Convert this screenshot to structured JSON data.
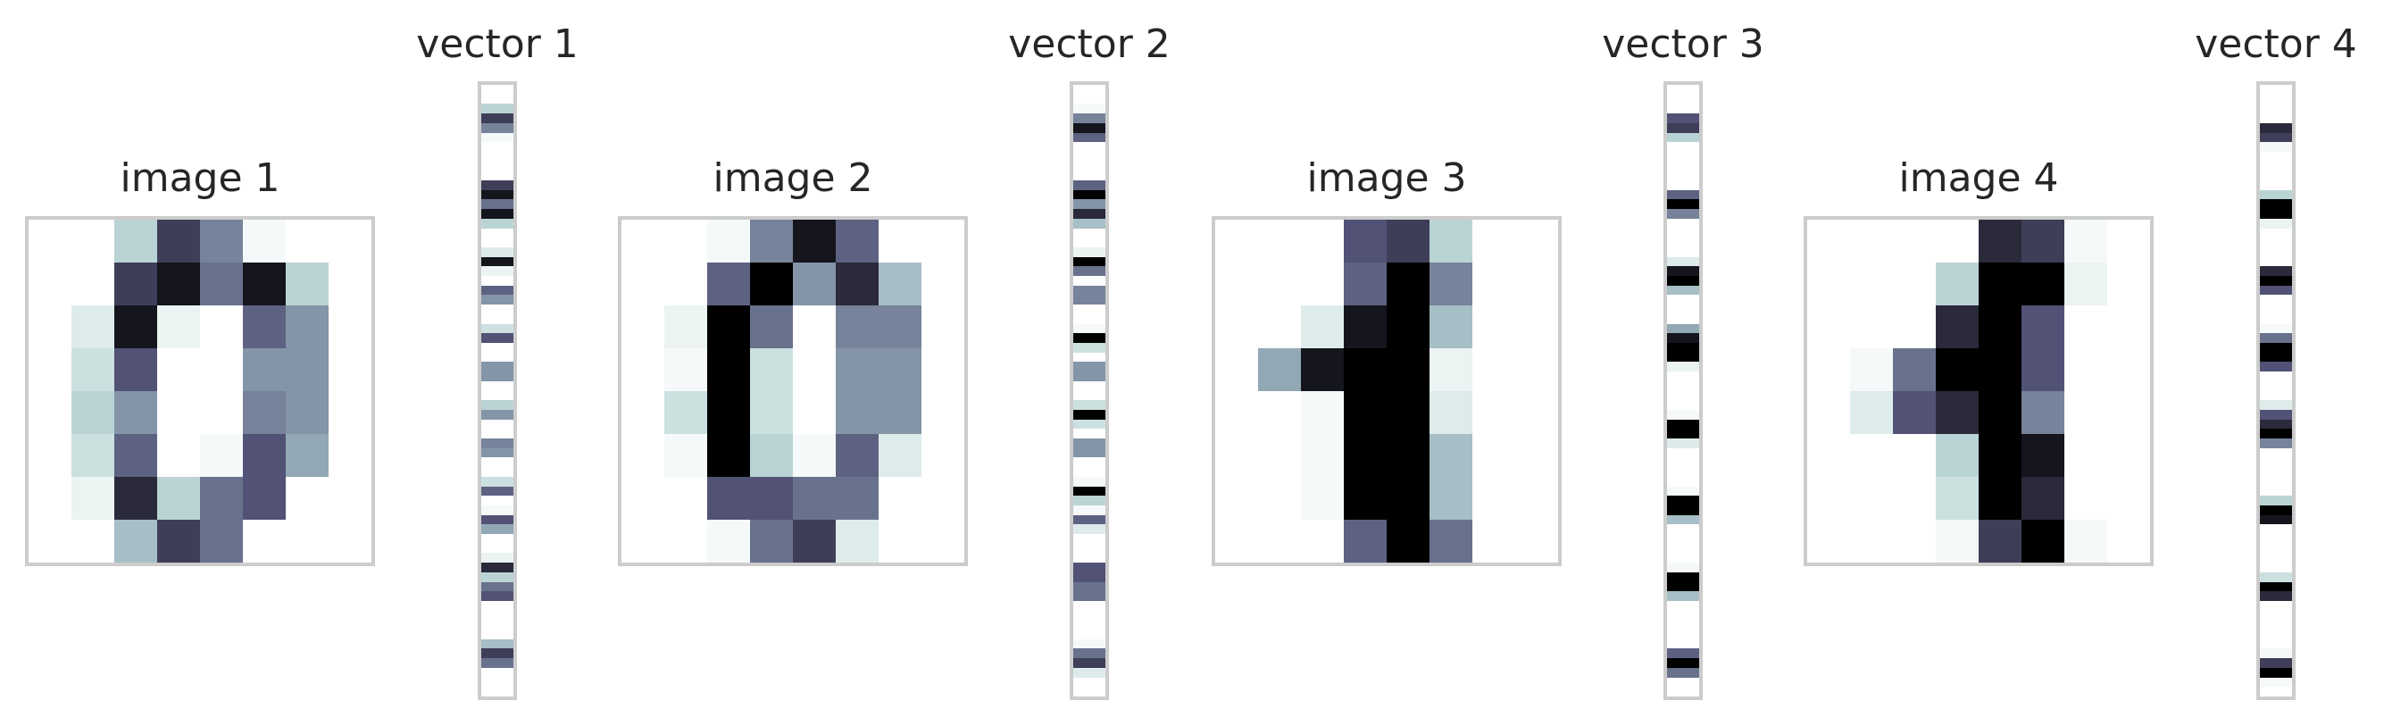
{
  "chart_data": {
    "type": "heatmap",
    "colormap": "bone_r",
    "value_range": [
      0,
      16
    ],
    "panels": [
      {
        "image_title": "image 1",
        "vector_title": "vector 1",
        "pixels": [
          [
            0,
            0,
            5,
            13,
            9,
            1,
            0,
            0
          ],
          [
            0,
            0,
            13,
            15,
            10,
            15,
            5,
            0
          ],
          [
            0,
            3,
            15,
            2,
            0,
            11,
            8,
            0
          ],
          [
            0,
            4,
            12,
            0,
            0,
            8,
            8,
            0
          ],
          [
            0,
            5,
            8,
            0,
            0,
            9,
            8,
            0
          ],
          [
            0,
            4,
            11,
            0,
            1,
            12,
            7,
            0
          ],
          [
            0,
            2,
            14,
            5,
            10,
            12,
            0,
            0
          ],
          [
            0,
            0,
            6,
            13,
            10,
            0,
            0,
            0
          ]
        ]
      },
      {
        "image_title": "image 2",
        "vector_title": "vector 2",
        "pixels": [
          [
            0,
            0,
            1,
            9,
            15,
            11,
            0,
            0
          ],
          [
            0,
            0,
            11,
            16,
            8,
            14,
            6,
            0
          ],
          [
            0,
            2,
            16,
            10,
            0,
            9,
            9,
            0
          ],
          [
            0,
            1,
            16,
            4,
            0,
            8,
            8,
            0
          ],
          [
            0,
            4,
            16,
            4,
            0,
            8,
            8,
            0
          ],
          [
            0,
            1,
            16,
            5,
            1,
            11,
            3,
            0
          ],
          [
            0,
            0,
            12,
            12,
            10,
            10,
            0,
            0
          ],
          [
            0,
            0,
            1,
            10,
            13,
            3,
            0,
            0
          ]
        ]
      },
      {
        "image_title": "image 3",
        "vector_title": "vector 3",
        "pixels": [
          [
            0,
            0,
            0,
            12,
            13,
            5,
            0,
            0
          ],
          [
            0,
            0,
            0,
            11,
            16,
            9,
            0,
            0
          ],
          [
            0,
            0,
            3,
            15,
            16,
            6,
            0,
            0
          ],
          [
            0,
            7,
            15,
            16,
            16,
            2,
            0,
            0
          ],
          [
            0,
            0,
            1,
            16,
            16,
            3,
            0,
            0
          ],
          [
            0,
            0,
            1,
            16,
            16,
            6,
            0,
            0
          ],
          [
            0,
            0,
            1,
            16,
            16,
            6,
            0,
            0
          ],
          [
            0,
            0,
            0,
            11,
            16,
            10,
            0,
            0
          ]
        ]
      },
      {
        "image_title": "image 4",
        "vector_title": "vector 4",
        "pixels": [
          [
            0,
            0,
            0,
            0,
            14,
            13,
            1,
            0
          ],
          [
            0,
            0,
            0,
            5,
            16,
            16,
            2,
            0
          ],
          [
            0,
            0,
            0,
            14,
            16,
            12,
            0,
            0
          ],
          [
            0,
            1,
            10,
            16,
            16,
            12,
            0,
            0
          ],
          [
            0,
            3,
            12,
            14,
            16,
            9,
            0,
            0
          ],
          [
            0,
            0,
            0,
            5,
            16,
            15,
            0,
            0
          ],
          [
            0,
            0,
            0,
            4,
            16,
            14,
            0,
            0
          ],
          [
            0,
            0,
            0,
            1,
            13,
            16,
            1,
            0
          ]
        ]
      }
    ]
  }
}
